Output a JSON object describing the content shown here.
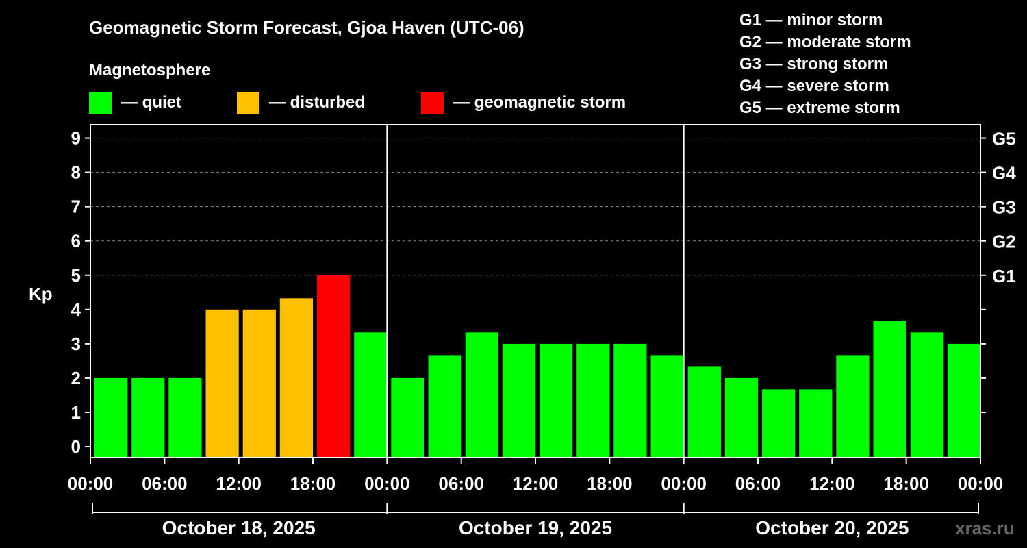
{
  "chart_data": {
    "type": "bar",
    "title": "Geomagnetic Storm Forecast, Gjoa Haven (UTC-06)",
    "ylabel": "Kp",
    "ylim": [
      0,
      9
    ],
    "yticks": [
      0,
      1,
      2,
      3,
      4,
      5,
      6,
      7,
      8,
      9
    ],
    "right_axis": [
      {
        "kp": 5,
        "label": "G1"
      },
      {
        "kp": 6,
        "label": "G2"
      },
      {
        "kp": 7,
        "label": "G3"
      },
      {
        "kp": 8,
        "label": "G4"
      },
      {
        "kp": 9,
        "label": "G5"
      }
    ],
    "legend_title": "Magnetosphere",
    "legend": [
      {
        "label": "— quiet",
        "color": "#00FF00"
      },
      {
        "label": "— disturbed",
        "color": "#FFC000"
      },
      {
        "label": "— geomagnetic storm",
        "color": "#FF0000"
      }
    ],
    "scale_legend": [
      "G1 — minor storm",
      "G2 — moderate storm",
      "G3 — strong storm",
      "G4 — severe storm",
      "G5 — extreme storm"
    ],
    "days": [
      "October 18, 2025",
      "October 19, 2025",
      "October 20, 2025"
    ],
    "x_tick_labels": [
      "00:00",
      "06:00",
      "12:00",
      "18:00",
      "00:00",
      "06:00",
      "12:00",
      "18:00",
      "00:00",
      "06:00",
      "12:00",
      "18:00",
      "00:00"
    ],
    "values": [
      2.0,
      2.0,
      2.0,
      4.0,
      4.0,
      4.33,
      5.0,
      3.33,
      2.0,
      2.67,
      3.33,
      3.0,
      3.0,
      3.0,
      3.0,
      2.67,
      2.33,
      2.0,
      1.67,
      1.67,
      2.67,
      3.67,
      3.33,
      3.0
    ],
    "status": [
      "quiet",
      "quiet",
      "quiet",
      "disturbed",
      "disturbed",
      "disturbed",
      "storm",
      "quiet",
      "quiet",
      "quiet",
      "quiet",
      "quiet",
      "quiet",
      "quiet",
      "quiet",
      "quiet",
      "quiet",
      "quiet",
      "quiet",
      "quiet",
      "quiet",
      "quiet",
      "quiet",
      "quiet"
    ],
    "colors": {
      "quiet": "#00FF00",
      "disturbed": "#FFC000",
      "storm": "#FF0000"
    },
    "watermark": "xras.ru"
  }
}
